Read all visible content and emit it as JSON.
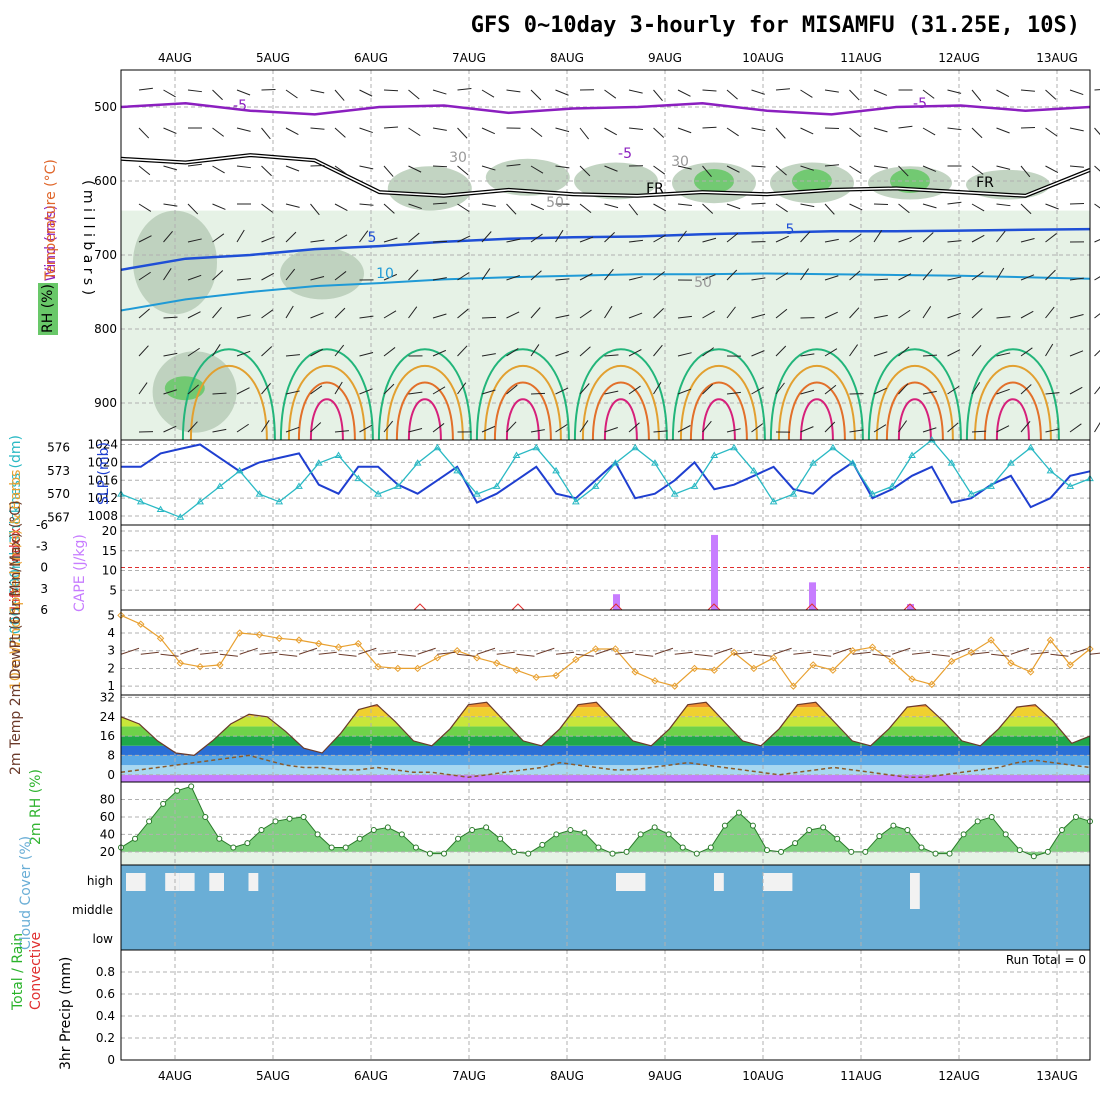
{
  "title": "GFS 0~10day 3-hourly for MISAMFU (31.25E, 10S)",
  "colors": {
    "temp_ne5": "#8b1fbf",
    "temp_5": "#1f4fd6",
    "temp_10": "#1f9ad6",
    "temp_warm1": "#22b57a",
    "temp_warm2": "#e2a030",
    "temp_warm3": "#e2702a",
    "temp_hot": "#d6207a",
    "rh_light": "#e6f2e6",
    "rh_mid": "#b7ccb7",
    "rh_high": "#69c869",
    "slp": "#1f3fd0",
    "thickness": "#2ab9c4",
    "cape": "#c77dff",
    "li": "#e03030",
    "wind10": "#e8a030",
    "dewpt": "#8b5a2b",
    "rh2m": "#32b432",
    "cloud": "#6aaed6",
    "cloud_gap": "#f2f2f2"
  },
  "chart_data": [
    {
      "id": "upper_air",
      "type": "contour",
      "ylabel_parts": [
        "RH (%)",
        "Temperature (°C)",
        "Wind (m/s)"
      ],
      "yaxis_label": "( m i l l i b a r s )",
      "y_ticks": [
        500,
        600,
        700,
        800,
        900
      ],
      "ylim": [
        450,
        950
      ],
      "x_dates": [
        "4AUG",
        "5AUG",
        "6AUG",
        "7AUG",
        "8AUG",
        "9AUG",
        "10AUG",
        "11AUG",
        "12AUG",
        "13AUG"
      ],
      "contour_labels": [
        "-5",
        "-5",
        "-5",
        "5",
        "5",
        "10",
        "FR",
        "FR",
        "30",
        "30",
        "50",
        "50"
      ],
      "contours": {
        "minus5": [
          500,
          495,
          505,
          510,
          500,
          498,
          508,
          502,
          500,
          495,
          505,
          510,
          500,
          498,
          505,
          500
        ],
        "freezing": [
          570,
          575,
          565,
          572,
          615,
          620,
          612,
          618,
          620,
          615,
          618,
          612,
          610,
          615,
          620,
          585
        ],
        "plus5": [
          720,
          705,
          700,
          692,
          688,
          682,
          678,
          676,
          675,
          672,
          670,
          668,
          668,
          667,
          666,
          665
        ],
        "plus10": [
          775,
          760,
          750,
          742,
          738,
          733,
          730,
          728,
          726,
          726,
          725,
          726,
          727,
          728,
          730,
          732
        ]
      }
    },
    {
      "id": "slp_thickness",
      "type": "line",
      "ylabel_left": "1000~500mb Thickness (dm)",
      "ylabel_right": "SLP (mb)",
      "y_ticks_thk": [
        567,
        570,
        573,
        576
      ],
      "y_ticks_slp": [
        1008,
        1012,
        1016,
        1020,
        1024
      ],
      "ylim_thk": [
        566,
        577
      ],
      "ylim_slp": [
        1006,
        1025
      ],
      "series": [
        {
          "name": "SLP (mb)",
          "values": [
            1019,
            1019,
            1022,
            1023,
            1024,
            1021,
            1018,
            1020,
            1021,
            1022,
            1015,
            1013,
            1019,
            1019,
            1015,
            1013,
            1016,
            1019,
            1011,
            1013,
            1016,
            1019,
            1013,
            1012,
            1016,
            1020,
            1012,
            1013,
            1016,
            1020,
            1014,
            1015,
            1017,
            1019,
            1014,
            1013,
            1017,
            1020,
            1012,
            1014,
            1017,
            1019,
            1011,
            1012,
            1015,
            1017,
            1010,
            1012,
            1017,
            1018
          ]
        },
        {
          "name": "Thickness (dm)",
          "values": [
            570,
            569,
            568,
            567,
            569,
            571,
            573,
            570,
            569,
            571,
            574,
            575,
            572,
            570,
            571,
            574,
            576,
            573,
            570,
            571,
            575,
            576,
            573,
            569,
            571,
            574,
            576,
            574,
            570,
            571,
            575,
            576,
            573,
            569,
            570,
            574,
            576,
            574,
            570,
            571,
            575,
            577,
            574,
            570,
            571,
            574,
            576,
            573,
            571,
            572
          ]
        }
      ]
    },
    {
      "id": "cape_li",
      "type": "bar",
      "ylabel_left": "Lifted Index",
      "ylabel_right": "CAPE (J/kg)",
      "y_ticks_li": [
        "6",
        "3",
        "0",
        "-3",
        "-6"
      ],
      "y_ticks_cape": [
        "5",
        "10",
        "15",
        "20"
      ],
      "ylim_cape": [
        0,
        20
      ],
      "cape_bars": [
        {
          "day": 8.5,
          "value": 4
        },
        {
          "day": 9.5,
          "value": 19
        },
        {
          "day": 10.5,
          "value": 7
        },
        {
          "day": 11.5,
          "value": 1.5
        }
      ],
      "li_marks": [
        6.5,
        7.5,
        8.5,
        9.5,
        10.5,
        11.5
      ]
    },
    {
      "id": "wind10m",
      "type": "line",
      "ylabel": "10m Wind Speed (m/s) & Barbs",
      "y_ticks": [
        1,
        2,
        3,
        4,
        5
      ],
      "ylim": [
        0.5,
        5.3
      ],
      "values": [
        5.0,
        4.5,
        3.7,
        2.3,
        2.1,
        2.2,
        4.0,
        3.9,
        3.7,
        3.6,
        3.4,
        3.2,
        3.4,
        2.1,
        2.0,
        2.0,
        2.6,
        3.0,
        2.6,
        2.3,
        1.9,
        1.5,
        1.6,
        2.5,
        3.1,
        3.1,
        1.8,
        1.3,
        1.0,
        2.0,
        1.9,
        2.9,
        2.0,
        2.6,
        1.0,
        2.2,
        1.9,
        3.0,
        3.2,
        2.4,
        1.4,
        1.1,
        2.4,
        2.9,
        3.6,
        2.3,
        1.8,
        3.6,
        2.2,
        3.1
      ]
    },
    {
      "id": "temp2m",
      "type": "area",
      "ylabel": "2m Temp 2m DewPt (6hr Min/Max) (°C)",
      "y_ticks": [
        0,
        8,
        16,
        24,
        32
      ],
      "ylim": [
        -3,
        33
      ],
      "temp": [
        24,
        21,
        14,
        9,
        8,
        14,
        21,
        25,
        24,
        18,
        11,
        9,
        17,
        27,
        29,
        22,
        14,
        12,
        19,
        29,
        30,
        22,
        14,
        12,
        19,
        29,
        30,
        22,
        14,
        12,
        19,
        29,
        30,
        22,
        14,
        12,
        19,
        29,
        30,
        22,
        14,
        12,
        19,
        28,
        29,
        22,
        14,
        12,
        19,
        28,
        29,
        22,
        13,
        16
      ],
      "dewpt": [
        1,
        2,
        3,
        4,
        5,
        6,
        7,
        8,
        6,
        4,
        3,
        3,
        2,
        2,
        3,
        2,
        1,
        1,
        0,
        -1,
        0,
        1,
        2,
        3,
        5,
        4,
        3,
        2,
        2,
        3,
        4,
        5,
        4,
        3,
        2,
        1,
        0,
        1,
        2,
        3,
        2,
        1,
        0,
        -1,
        -1,
        0,
        1,
        2,
        3,
        5,
        6,
        5,
        4,
        3
      ]
    },
    {
      "id": "rh2m",
      "type": "area",
      "ylabel": "2m RH (%)",
      "y_ticks": [
        20,
        40,
        60,
        80
      ],
      "ylim": [
        5,
        100
      ],
      "values": [
        25,
        35,
        55,
        75,
        90,
        95,
        60,
        35,
        25,
        30,
        45,
        55,
        58,
        60,
        40,
        25,
        25,
        35,
        45,
        48,
        40,
        25,
        18,
        18,
        35,
        45,
        48,
        35,
        20,
        18,
        28,
        40,
        45,
        42,
        25,
        18,
        20,
        40,
        48,
        40,
        25,
        18,
        25,
        50,
        65,
        50,
        22,
        20,
        30,
        45,
        48,
        35,
        20,
        20,
        38,
        50,
        45,
        25,
        18,
        18,
        40,
        55,
        60,
        40,
        22,
        15,
        20,
        45,
        60,
        55
      ]
    },
    {
      "id": "cloud",
      "type": "heatmap",
      "ylabel": "Cloud Cover (%)",
      "levels": [
        "high",
        "middle",
        "low"
      ]
    },
    {
      "id": "precip",
      "type": "bar",
      "ylabel_left": "Total / Rain",
      "ylabel_sub": "Convective",
      "ylabel_right": "3hr Precip (mm)",
      "y_ticks": [
        "0",
        "0.2",
        "0.4",
        "0.6",
        "0.8"
      ],
      "ylim": [
        0,
        1
      ],
      "values": [],
      "run_total": "Run Total = 0"
    }
  ]
}
